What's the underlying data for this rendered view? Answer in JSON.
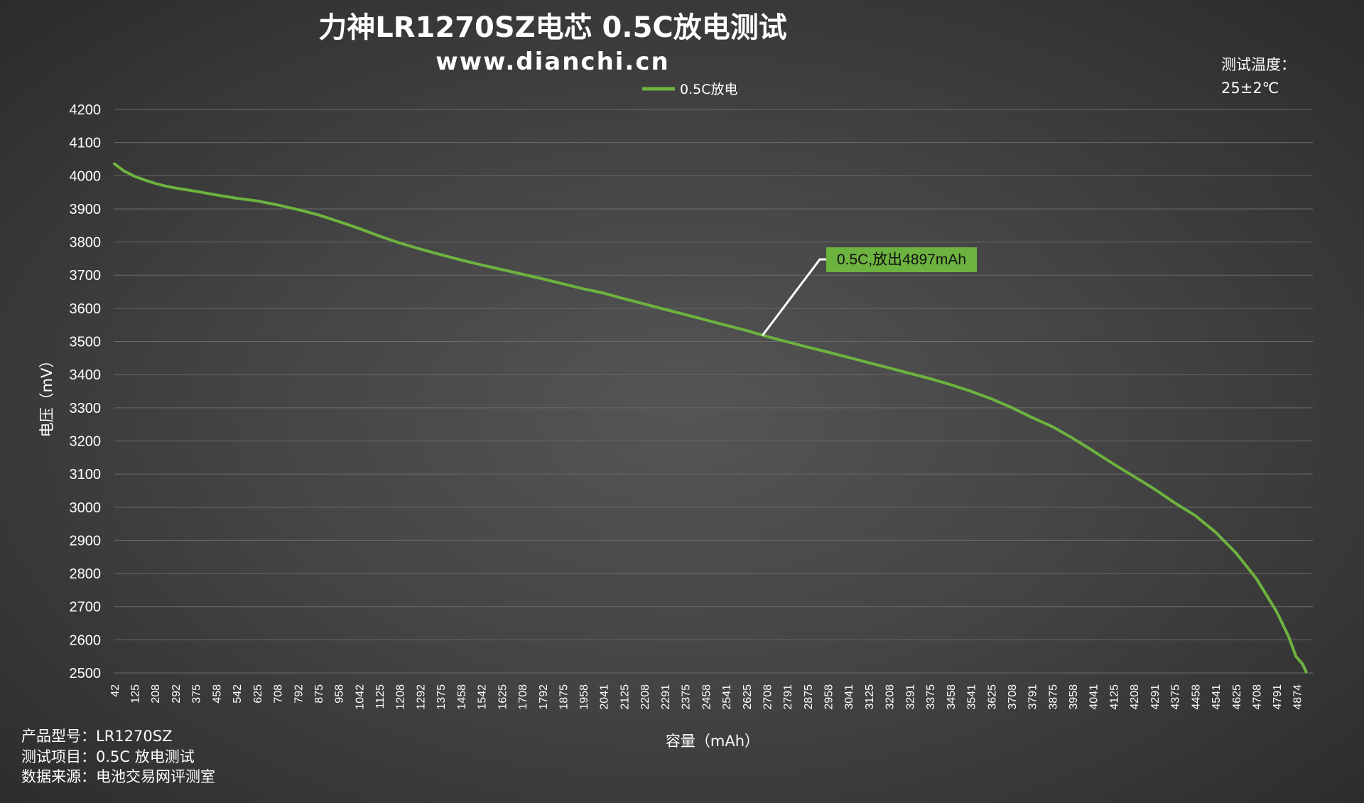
{
  "header": {
    "title": "力神LR1270SZ电芯 0.5C放电测试",
    "subtitle": "www.dianchi.cn"
  },
  "temperature_note": {
    "label": "测试温度：",
    "value": "25±2℃"
  },
  "footer": {
    "lines": [
      "产品型号：LR1270SZ",
      "测试项目：0.5C 放电测试",
      "数据来源：电池交易网评测室"
    ]
  },
  "annotation": {
    "text": "0.5C,放出4897mAh",
    "point": {
      "x": 2690,
      "y": 3518
    },
    "box_color": "#6db33f"
  },
  "chart_data": {
    "type": "line",
    "xlabel": "容量（mAh）",
    "ylabel": "电压（mV）",
    "ylim": [
      2500,
      4200
    ],
    "ytick_step": 100,
    "xlim": [
      42,
      4939
    ],
    "xticks": [
      "42",
      "125",
      "208",
      "292",
      "375",
      "458",
      "542",
      "625",
      "708",
      "792",
      "875",
      "958",
      "1042",
      "1125",
      "1208",
      "1292",
      "1375",
      "1458",
      "1542",
      "1625",
      "1708",
      "1792",
      "1875",
      "1958",
      "2041",
      "2125",
      "2208",
      "2291",
      "2375",
      "2458",
      "2541",
      "2625",
      "2708",
      "2791",
      "2875",
      "2958",
      "3041",
      "3125",
      "3208",
      "3291",
      "3375",
      "3458",
      "3541",
      "3625",
      "3708",
      "3791",
      "3875",
      "3958",
      "4041",
      "4125",
      "4208",
      "4291",
      "4375",
      "4458",
      "4541",
      "4625",
      "4708",
      "4791",
      "4874"
    ],
    "grid": true,
    "legend_position": "top-center",
    "series": [
      {
        "name": "0.5C放电",
        "color": "#6db33f",
        "points": [
          [
            42,
            4036
          ],
          [
            80,
            4015
          ],
          [
            125,
            3998
          ],
          [
            170,
            3986
          ],
          [
            208,
            3977
          ],
          [
            250,
            3969
          ],
          [
            292,
            3963
          ],
          [
            375,
            3953
          ],
          [
            458,
            3942
          ],
          [
            542,
            3932
          ],
          [
            625,
            3924
          ],
          [
            708,
            3912
          ],
          [
            792,
            3898
          ],
          [
            875,
            3882
          ],
          [
            958,
            3862
          ],
          [
            1042,
            3841
          ],
          [
            1125,
            3818
          ],
          [
            1208,
            3797
          ],
          [
            1292,
            3779
          ],
          [
            1375,
            3762
          ],
          [
            1458,
            3746
          ],
          [
            1542,
            3731
          ],
          [
            1625,
            3717
          ],
          [
            1708,
            3703
          ],
          [
            1792,
            3689
          ],
          [
            1875,
            3674
          ],
          [
            1958,
            3659
          ],
          [
            2041,
            3646
          ],
          [
            2125,
            3629
          ],
          [
            2208,
            3613
          ],
          [
            2291,
            3597
          ],
          [
            2375,
            3581
          ],
          [
            2458,
            3565
          ],
          [
            2541,
            3549
          ],
          [
            2625,
            3533
          ],
          [
            2708,
            3515
          ],
          [
            2791,
            3499
          ],
          [
            2875,
            3483
          ],
          [
            2958,
            3468
          ],
          [
            3041,
            3452
          ],
          [
            3125,
            3436
          ],
          [
            3208,
            3420
          ],
          [
            3291,
            3404
          ],
          [
            3375,
            3388
          ],
          [
            3458,
            3370
          ],
          [
            3541,
            3350
          ],
          [
            3625,
            3327
          ],
          [
            3708,
            3301
          ],
          [
            3791,
            3271
          ],
          [
            3875,
            3243
          ],
          [
            3958,
            3208
          ],
          [
            4041,
            3170
          ],
          [
            4125,
            3130
          ],
          [
            4208,
            3093
          ],
          [
            4291,
            3055
          ],
          [
            4375,
            3013
          ],
          [
            4458,
            2975
          ],
          [
            4541,
            2925
          ],
          [
            4625,
            2862
          ],
          [
            4708,
            2785
          ],
          [
            4791,
            2685
          ],
          [
            4840,
            2610
          ],
          [
            4870,
            2550
          ],
          [
            4897,
            2527
          ],
          [
            4912,
            2503
          ]
        ]
      }
    ]
  }
}
